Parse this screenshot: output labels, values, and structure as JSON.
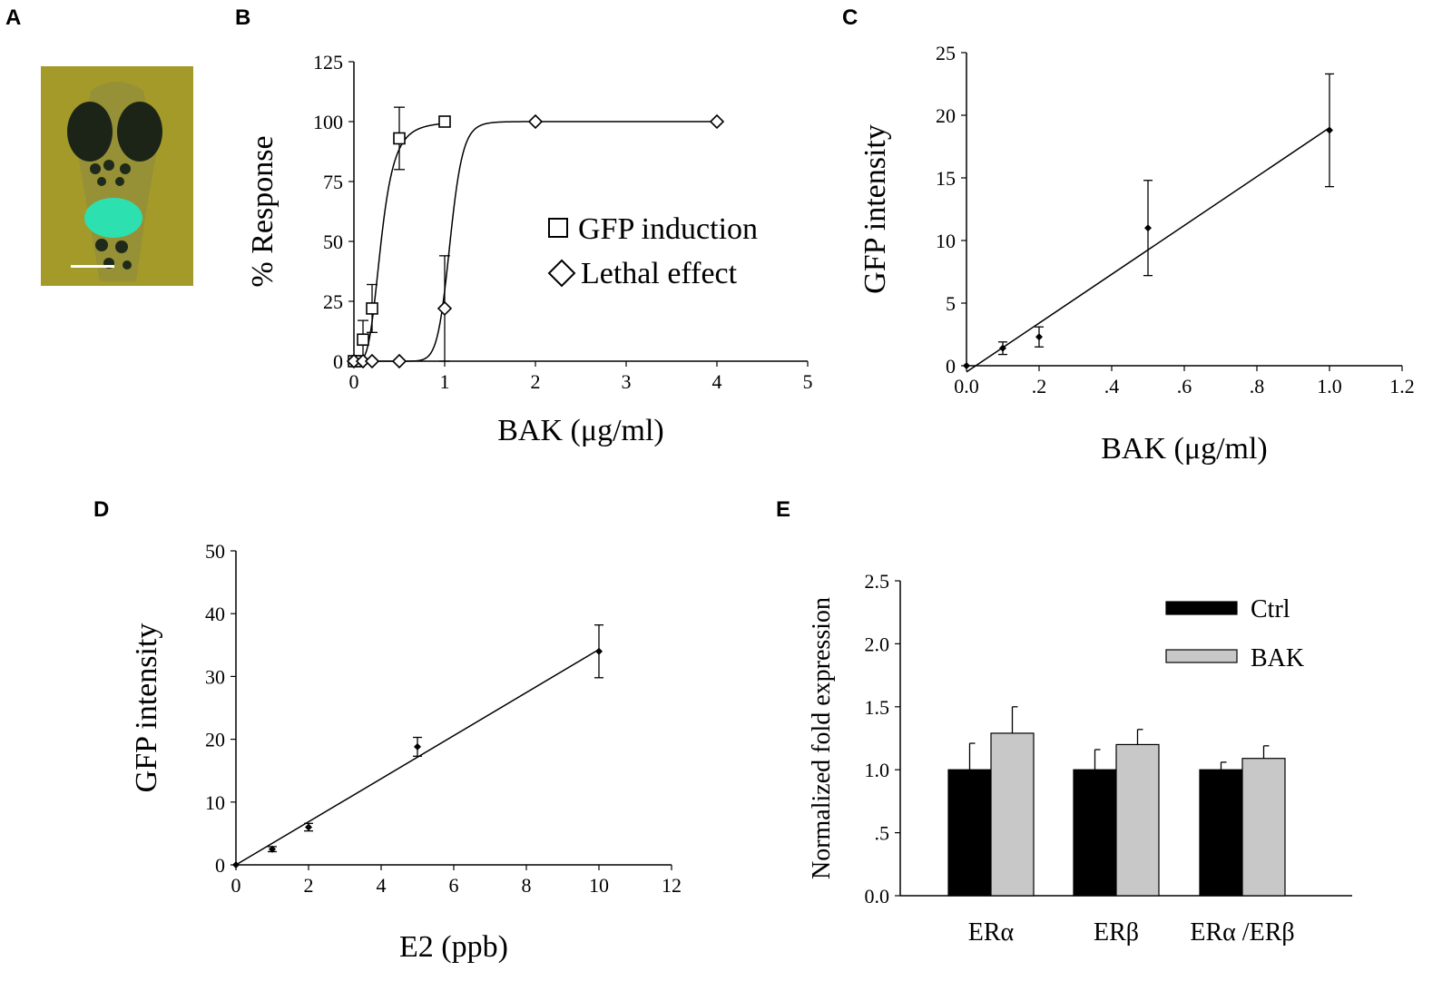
{
  "panel_letters": [
    "A",
    "B",
    "C",
    "D",
    "E"
  ],
  "colors": {
    "photo_bg": "#a49a2a",
    "gfp_green": "#2de0b0",
    "eye": "#1c2418",
    "scale_bar": "#ffffff",
    "ctrl_bar": "#000000",
    "bak_bar": "#c8c8c8",
    "ink": "#000000"
  },
  "chart_data": [
    {
      "panel": "A",
      "type": "image",
      "content": "fluorescence micrograph of zebrafish larva with GFP signal"
    },
    {
      "panel": "B",
      "type": "scatter",
      "xlabel": "BAK (μg/ml)",
      "ylabel": "% Response",
      "xlim": [
        0,
        5
      ],
      "ylim": [
        0,
        125
      ],
      "xticks": [
        "0",
        "1",
        "2",
        "3",
        "4",
        "5"
      ],
      "yticks": [
        "0",
        "25",
        "50",
        "75",
        "100",
        "125"
      ],
      "series": [
        {
          "name": "GFP induction",
          "marker": "square",
          "x": [
            0,
            0.05,
            0.1,
            0.2,
            0.5,
            1.0
          ],
          "y": [
            0,
            0,
            9,
            22,
            93,
            100
          ],
          "err": [
            0,
            0,
            8,
            10,
            13,
            0
          ],
          "fit": {
            "ec50": 0.3,
            "hill": 4
          }
        },
        {
          "name": "Lethal effect",
          "marker": "diamond",
          "x": [
            0,
            0.1,
            0.2,
            0.5,
            1.0,
            2.0,
            4.0
          ],
          "y": [
            0,
            0,
            0,
            0,
            22,
            100,
            100
          ],
          "err": [
            0,
            0,
            0,
            0,
            22,
            0,
            0
          ],
          "fit": {
            "ec50": 1.06,
            "hill": 15
          }
        }
      ],
      "legend": [
        "GFP induction",
        "Lethal effect"
      ]
    },
    {
      "panel": "C",
      "type": "scatter",
      "xlabel": "BAK (μg/ml)",
      "ylabel": "GFP intensity",
      "xlim": [
        0,
        1.2
      ],
      "ylim": [
        0,
        25
      ],
      "xticks": [
        "0.0",
        ".2",
        ".4",
        ".6",
        ".8",
        "1.0",
        "1.2"
      ],
      "yticks": [
        "0",
        "5",
        "10",
        "15",
        "20",
        "25"
      ],
      "x": [
        0,
        0.1,
        0.2,
        0.5,
        1.0
      ],
      "y": [
        0,
        1.4,
        2.3,
        11.0,
        18.8
      ],
      "err": [
        0,
        0.5,
        0.8,
        3.8,
        4.5
      ],
      "fit_line": {
        "x": [
          0,
          1.0
        ],
        "y": [
          -0.5,
          19.0
        ]
      }
    },
    {
      "panel": "D",
      "type": "scatter",
      "xlabel": "E2 (ppb)",
      "ylabel": "GFP intensity",
      "xlim": [
        0,
        12
      ],
      "ylim": [
        0,
        50
      ],
      "xticks": [
        "0",
        "2",
        "4",
        "6",
        "8",
        "10",
        "12"
      ],
      "yticks": [
        "0",
        "10",
        "20",
        "30",
        "40",
        "50"
      ],
      "x": [
        0,
        1,
        2,
        5,
        10
      ],
      "y": [
        0,
        2.5,
        6.0,
        18.8,
        34.0
      ],
      "err": [
        0,
        0.4,
        0.6,
        1.5,
        4.2
      ],
      "fit_line": {
        "x": [
          0,
          10
        ],
        "y": [
          0,
          34.3
        ]
      }
    },
    {
      "panel": "E",
      "type": "bar",
      "ylabel": "Normalized fold expression",
      "ylim": [
        0,
        2.5
      ],
      "yticks": [
        "0.0",
        ".5",
        "1.0",
        "1.5",
        "2.0",
        "2.5"
      ],
      "categories": [
        "ERα",
        "ERβ",
        "ERα  /ERβ"
      ],
      "series": [
        {
          "name": "Ctrl",
          "values": [
            1.0,
            1.0,
            1.0
          ],
          "err": [
            0.21,
            0.16,
            0.06
          ]
        },
        {
          "name": "BAK",
          "values": [
            1.29,
            1.2,
            1.09
          ],
          "err": [
            0.21,
            0.12,
            0.1
          ]
        }
      ],
      "legend": [
        "Ctrl",
        "BAK"
      ]
    }
  ]
}
